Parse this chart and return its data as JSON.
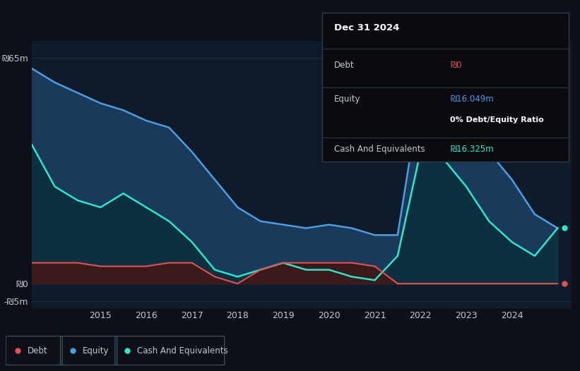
{
  "bg_color": "#0d1117",
  "plot_bg_color": "#0d1b2a",
  "grid_color": "#1e2d3d",
  "text_color": "#c0c8d0",
  "title_color": "#ffffff",
  "debt_color": "#e05252",
  "equity_color": "#4d9de0",
  "cash_color": "#2de8c8",
  "equity_fill_color": "#1a3a5c",
  "cash_fill_color": "#0d3040",
  "debt_fill_color": "#3a1a1a",
  "x_years": [
    2013.5,
    2014.0,
    2014.5,
    2015.0,
    2015.5,
    2016.0,
    2016.5,
    2017.0,
    2017.5,
    2018.0,
    2018.5,
    2019.0,
    2019.5,
    2020.0,
    2020.5,
    2021.0,
    2021.5,
    2022.0,
    2022.5,
    2023.0,
    2023.5,
    2024.0,
    2024.5,
    2025.0
  ],
  "equity_y": [
    62,
    58,
    55,
    52,
    50,
    47,
    45,
    38,
    30,
    22,
    18,
    17,
    16,
    17,
    16,
    14,
    14,
    55,
    52,
    45,
    38,
    30,
    20,
    16
  ],
  "cash_y": [
    40,
    28,
    24,
    22,
    26,
    22,
    18,
    12,
    4,
    2,
    4,
    6,
    4,
    4,
    2,
    1,
    8,
    38,
    36,
    28,
    18,
    12,
    8,
    16
  ],
  "debt_y": [
    6,
    6,
    6,
    5,
    5,
    5,
    6,
    6,
    2,
    0,
    4,
    6,
    6,
    6,
    6,
    5,
    0,
    0,
    0,
    0,
    0,
    0,
    0,
    0
  ],
  "ytick_labels": [
    "-₪5m",
    "₪0",
    "₪65m"
  ],
  "x_tick_positions": [
    2015,
    2016,
    2017,
    2018,
    2019,
    2020,
    2021,
    2022,
    2023,
    2024
  ],
  "legend_items": [
    "Debt",
    "Equity",
    "Cash And Equivalents"
  ],
  "legend_colors": [
    "#e05252",
    "#4d9de0",
    "#2de8c8"
  ],
  "tooltip_title": "Dec 31 2024",
  "tooltip_debt_label": "Debt",
  "tooltip_debt_value": "₪0",
  "tooltip_equity_label": "Equity",
  "tooltip_equity_value": "₪16.049m",
  "tooltip_ratio": "0% Debt/Equity Ratio",
  "tooltip_cash_label": "Cash And Equivalents",
  "tooltip_cash_value": "₪16.325m",
  "divider_color": "#2a3a4a",
  "tooltip_bg": "#0a0a0f"
}
